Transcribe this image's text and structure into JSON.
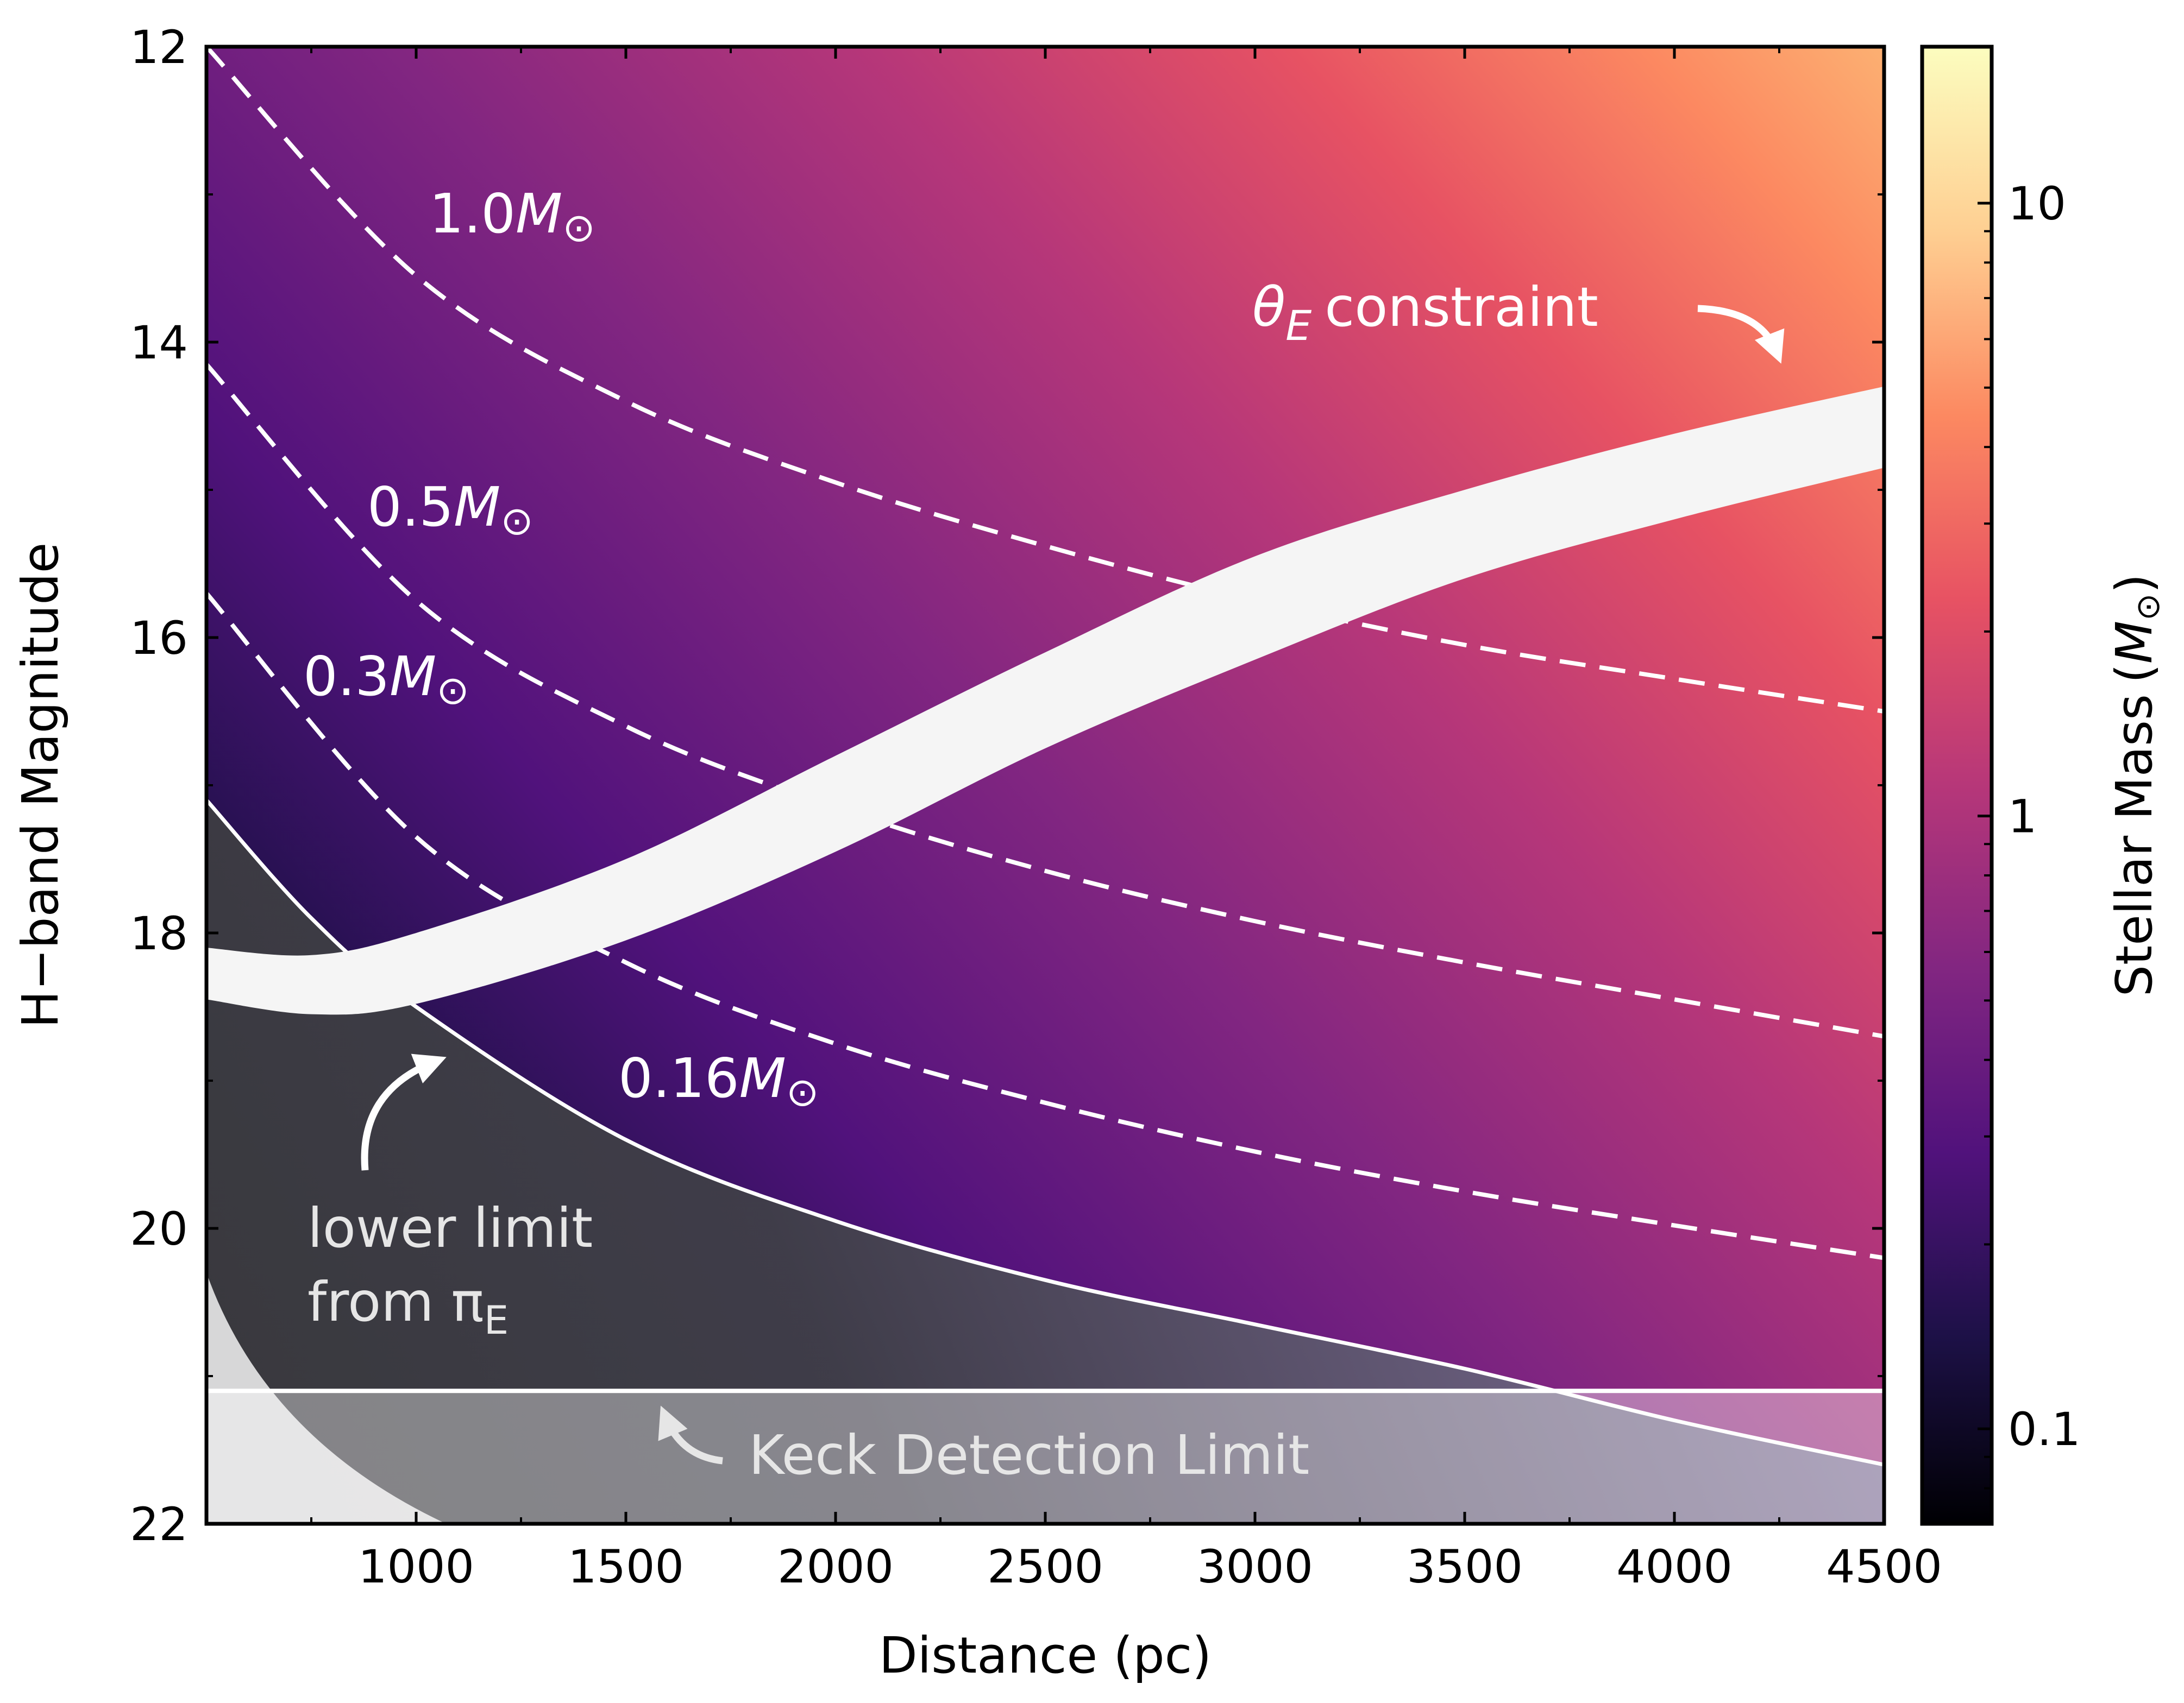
{
  "chart_data": {
    "type": "heatmap",
    "title": "",
    "xlabel": "Distance (pc)",
    "ylabel": "H−band Magnitude",
    "xlim": [
      500,
      4500
    ],
    "ylim": [
      22,
      12
    ],
    "x_ticks": [
      1000,
      1500,
      2000,
      2500,
      3000,
      3500,
      4000,
      4500
    ],
    "x_tick_labels": [
      "1000",
      "1500",
      "2000",
      "2500",
      "3000",
      "3500",
      "4000",
      "4500"
    ],
    "y_ticks": [
      12,
      14,
      16,
      18,
      20,
      22
    ],
    "y_tick_labels": [
      "12",
      "14",
      "16",
      "18",
      "20",
      "22"
    ],
    "colorbar": {
      "label": "Stellar Mass",
      "label_unit_symbol": "M",
      "label_unit_sub": "⊙",
      "scale": "log",
      "range": [
        0.07,
        18
      ],
      "ticks": [
        0.1,
        1,
        10
      ],
      "tick_labels": [
        "0.1",
        "1",
        "10"
      ],
      "colormap": "magma",
      "colormap_stops": [
        "#000004",
        "#1d1147",
        "#51127c",
        "#822681",
        "#b73779",
        "#e75263",
        "#fc8961",
        "#fecf92",
        "#fcfdbf"
      ]
    },
    "mass_contours": [
      {
        "mass_label": "1.0",
        "x": [
          500,
          1000,
          1500,
          2000,
          2500,
          3000,
          3500,
          4000,
          4500
        ],
        "y": [
          12.0,
          13.55,
          14.4,
          14.95,
          15.38,
          15.75,
          16.05,
          16.28,
          16.5
        ]
      },
      {
        "mass_label": "0.5",
        "x": [
          500,
          1000,
          1500,
          2000,
          2500,
          3000,
          3500,
          4000,
          4500
        ],
        "y": [
          14.15,
          15.75,
          16.6,
          17.15,
          17.58,
          17.92,
          18.2,
          18.45,
          18.7
        ]
      },
      {
        "mass_label": "0.3",
        "x": [
          500,
          1000,
          1500,
          2000,
          2500,
          3000,
          3500,
          4000,
          4500
        ],
        "y": [
          15.7,
          17.35,
          18.2,
          18.75,
          19.15,
          19.48,
          19.75,
          19.98,
          20.2
        ]
      }
    ],
    "lower_limit_curve": {
      "mass_label": "0.16",
      "x": [
        500,
        750,
        1000,
        1500,
        2000,
        2500,
        3000,
        3500,
        4000,
        4500
      ],
      "y": [
        17.1,
        17.9,
        18.5,
        19.4,
        19.95,
        20.35,
        20.65,
        20.95,
        21.3,
        21.6
      ]
    },
    "theta_E_band": {
      "x": [
        500,
        750,
        1000,
        1500,
        2000,
        2500,
        3000,
        3500,
        4000,
        4500
      ],
      "y_upper": [
        18.1,
        18.15,
        18.0,
        17.5,
        16.8,
        16.1,
        15.45,
        15.0,
        14.62,
        14.3
      ],
      "y_lower": [
        18.45,
        18.55,
        18.48,
        18.05,
        17.45,
        16.75,
        16.15,
        15.6,
        15.2,
        14.85
      ]
    },
    "keck_detection_limit": {
      "y": 21.1
    },
    "annotations": {
      "theta_e_symbol": "θ",
      "theta_e_sub": "E",
      "theta_e_text": "constraint",
      "lower_limit_line1": "lower limit",
      "lower_limit_line2": "from π",
      "lower_limit_sub": "E",
      "keck_text": "Keck Detection Limit",
      "mass_unit_symbol": "M",
      "mass_unit_sub": "⊙"
    }
  }
}
